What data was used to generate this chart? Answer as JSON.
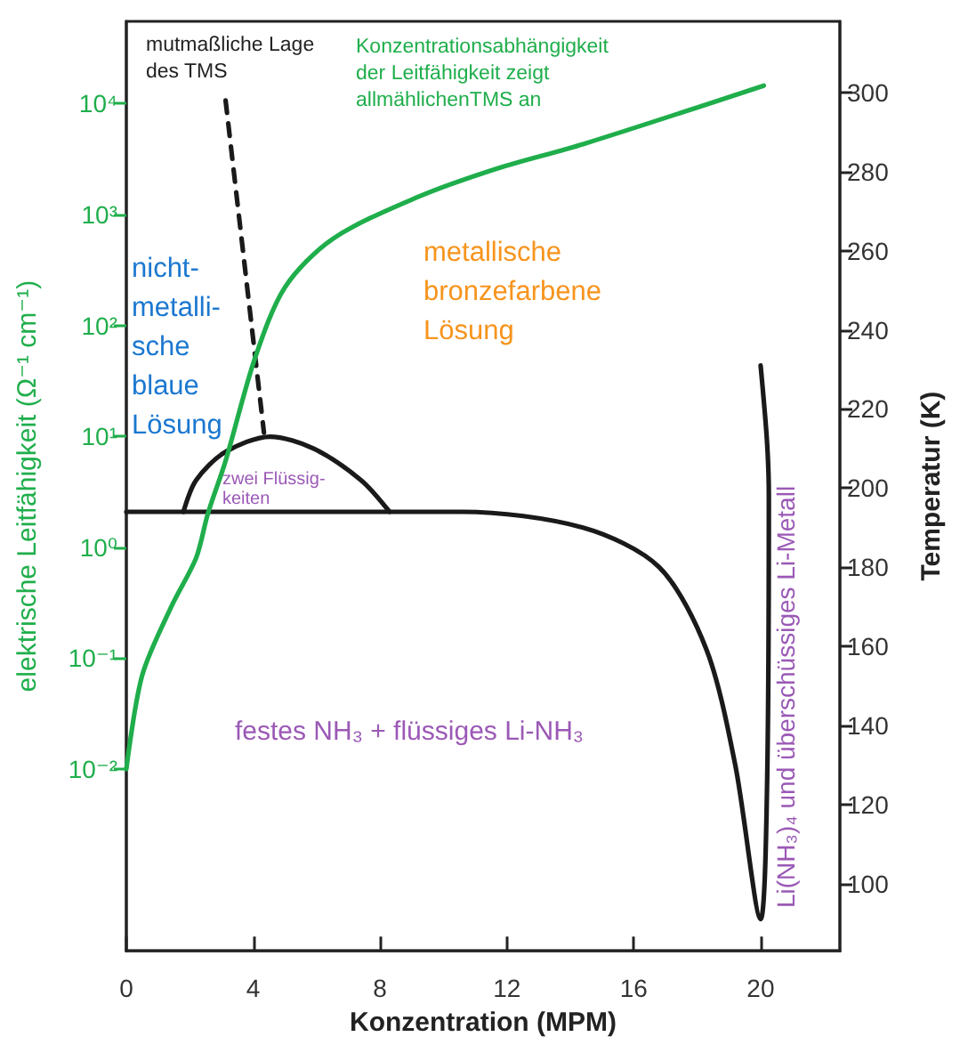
{
  "chart_data": {
    "type": "line",
    "xlabel": "Konzentration (MPM)",
    "ylabel": "elektrische Leitfähigkeit (Ω⁻¹ cm⁻¹)",
    "y2label": "Temperatur (K)",
    "xlim": [
      0,
      22.5
    ],
    "xticks": [
      0,
      4,
      8,
      12,
      16,
      20
    ],
    "log": "y",
    "ylim": [
      0.00023,
      55000
    ],
    "yticks": [
      {
        "value": 0.01,
        "label": "10⁻²"
      },
      {
        "value": 0.1,
        "label": "10⁻¹"
      },
      {
        "value": 1,
        "label": "10⁰"
      },
      {
        "value": 10,
        "label": "10¹"
      },
      {
        "value": 100,
        "label": "10²"
      },
      {
        "value": 1000,
        "label": "10³"
      },
      {
        "value": 10000,
        "label": "10⁴"
      }
    ],
    "y2lim": [
      83,
      318
    ],
    "y2ticks": [
      100,
      120,
      140,
      160,
      180,
      200,
      220,
      240,
      260,
      280,
      300
    ],
    "grid": false,
    "marker": "none",
    "line_style": "solid",
    "series": [
      {
        "color": "#1fae4b",
        "x": [
          0,
          0.5,
          1.44,
          2.2,
          2.57,
          3.13,
          4.05,
          5.0,
          6.5,
          9.1,
          11.7,
          14.4,
          20.1
        ],
        "values": [
          0.01,
          0.07,
          0.3,
          0.8,
          2,
          6,
          50,
          220,
          600,
          1400,
          2600,
          4300,
          14500
        ]
      },
      {
        "color": "#1a1a1a",
        "axis": "y2",
        "x": [
          0,
          8,
          10.6,
          14.4,
          16.8,
          18.3,
          19.2,
          20,
          20.2,
          20.26,
          20.2,
          20
        ],
        "values": [
          194,
          194,
          194,
          190,
          180,
          159,
          130,
          91,
          123,
          198,
          212,
          231
        ]
      },
      {
        "color": "#1a1a1a",
        "axis": "y2",
        "x": [
          1.8,
          2.2,
          3.1,
          4.53,
          5.9,
          7.4,
          8.3
        ],
        "values": [
          194,
          202,
          209,
          213,
          210,
          202,
          194
        ]
      },
      {
        "color": "#1a1a1a",
        "axis": "y2",
        "line_style": "dashed",
        "x": [
          3.13,
          4.34
        ],
        "values": [
          298,
          214
        ]
      }
    ],
    "annotations": [
      "mutmaßliche Lage\ndes TMS",
      "Konzentrationsabhängigkeit\nder Leitfähigkeit zeigt\nallmählichenTMS an",
      "nicht-\nmetalli-\nsche\nblaue\nLösung",
      "metallische\nbronzefarbene\nLösung",
      "zwei Flüssig-\nkeiten",
      "festes NH₃ + flüssiges Li-NH₃",
      "Li(NH₃)₄ und überschüssiges Li-Metall"
    ]
  }
}
